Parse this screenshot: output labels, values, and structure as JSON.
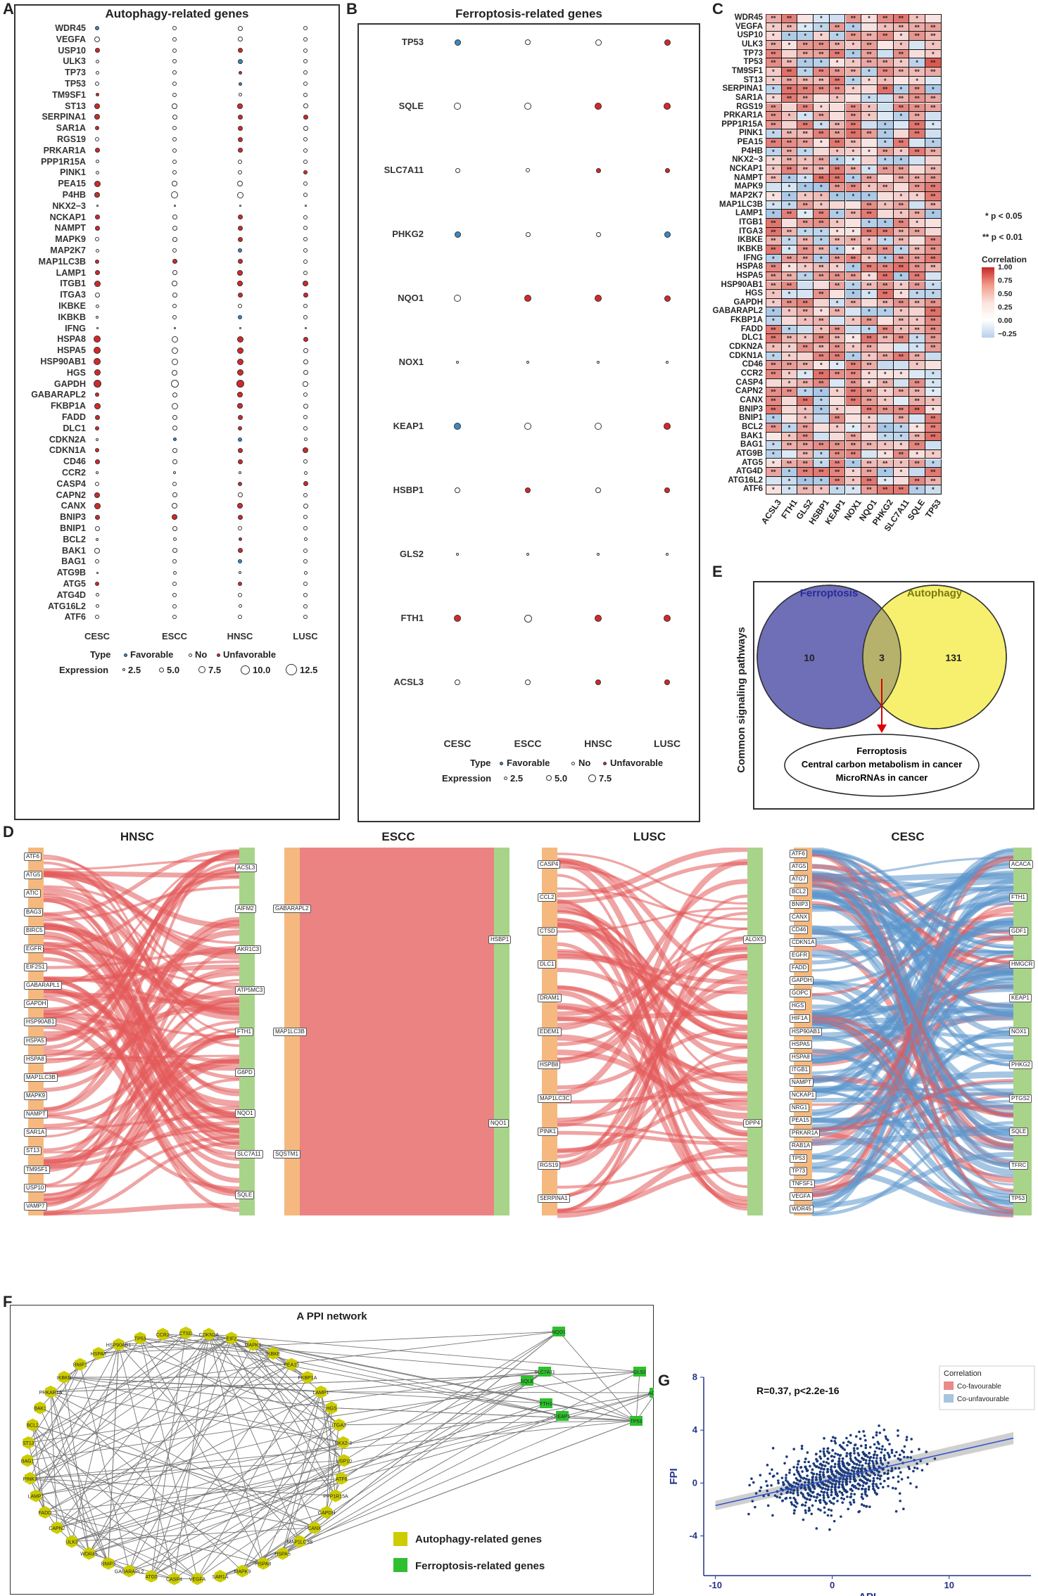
{
  "panels": {
    "A": "A",
    "B": "B",
    "C": "C",
    "D": "D",
    "E": "E",
    "F": "F",
    "G": "G"
  },
  "panelA": {
    "title": "Autophagy-related genes",
    "genes": [
      "WDR45",
      "VEGFA",
      "USP10",
      "ULK3",
      "TP73",
      "TP53",
      "TM9SF1",
      "ST13",
      "SERPINA1",
      "SAR1A",
      "RGS19",
      "PRKAR1A",
      "PPP1R15A",
      "PINK1",
      "PEA15",
      "P4HB",
      "NKX2−3",
      "NCKAP1",
      "NAMPT",
      "MAPK9",
      "MAP2K7",
      "MAP1LC3B",
      "LAMP1",
      "ITGB1",
      "ITGA3",
      "IKBKE",
      "IKBKB",
      "IFNG",
      "HSPA8",
      "HSPA5",
      "HSP90AB1",
      "HGS",
      "GAPDH",
      "GABARAPL2",
      "FKBP1A",
      "FADD",
      "DLC1",
      "CDKN2A",
      "CDKN1A",
      "CD46",
      "CCR2",
      "CASP4",
      "CAPN2",
      "CANX",
      "BNIP3",
      "BNIP1",
      "BCL2",
      "BAK1",
      "BAG1",
      "ATG9B",
      "ATG5",
      "ATG4D",
      "ATG16L2",
      "ATF6"
    ],
    "cancers": [
      "CESC",
      "ESCC",
      "HNSC",
      "LUSC"
    ],
    "types": [
      "FRUNNNUUUUNUNNUUNUUNNUUUNNNNUUUUUUUUUNUUNNUUUNNNNNUNNN",
      "NNNNNNNNNNNNNNNNNNNNNUNNNNNNNNNNNNNNNFNNNNNNUNNNNNNNNN",
      "NNUFUFNUUUUUNNNNNUUUFUUUUNFNUUUUUUUUUFUUNUNUUNUUFNUNNN",
      "NNNNNNNNUNNNNUNNNNNNNNNUUNNNUNNNNNNNNNUNNUNNNNNNNNNNNN"
    ],
    "sizes": [
      [
        4,
        6,
        5,
        3,
        3,
        4,
        3,
        6,
        6,
        4,
        4,
        5,
        3,
        3,
        7,
        6,
        1,
        5,
        5,
        4,
        3,
        4,
        5,
        7,
        5,
        3,
        2,
        1,
        8,
        8,
        8,
        7,
        9,
        4,
        7,
        5,
        4,
        2,
        4,
        5,
        2,
        4,
        6,
        7,
        5,
        5,
        2,
        6,
        4,
        1,
        4,
        3,
        3,
        4
      ],
      [
        4,
        4,
        4,
        4,
        4,
        4,
        4,
        6,
        5,
        4,
        4,
        4,
        4,
        4,
        6,
        8,
        1,
        5,
        5,
        5,
        4,
        5,
        5,
        6,
        5,
        4,
        4,
        1,
        7,
        7,
        7,
        6,
        9,
        5,
        7,
        5,
        5,
        3,
        5,
        5,
        2,
        4,
        5,
        6,
        6,
        5,
        3,
        5,
        4,
        3,
        4,
        4,
        4,
        4
      ],
      [
        5,
        5,
        5,
        5,
        3,
        3,
        3,
        6,
        5,
        5,
        5,
        5,
        4,
        4,
        6,
        7,
        1,
        5,
        5,
        5,
        4,
        5,
        6,
        6,
        5,
        4,
        4,
        1,
        7,
        7,
        7,
        7,
        9,
        6,
        6,
        5,
        4,
        4,
        5,
        5,
        2,
        4,
        5,
        6,
        5,
        4,
        3,
        5,
        4,
        2,
        4,
        4,
        3,
        4
      ],
      [
        4,
        4,
        4,
        4,
        4,
        4,
        4,
        5,
        5,
        5,
        4,
        4,
        4,
        4,
        4,
        4,
        1,
        4,
        4,
        4,
        4,
        4,
        4,
        6,
        5,
        4,
        4,
        1,
        5,
        5,
        5,
        5,
        6,
        4,
        5,
        4,
        4,
        3,
        6,
        4,
        3,
        5,
        4,
        5,
        4,
        4,
        3,
        4,
        4,
        3,
        4,
        4,
        4,
        4
      ]
    ],
    "legend": {
      "type_label": "Type",
      "type_items": [
        "Favorable",
        "No",
        "Unfavorable"
      ],
      "expr_label": "Expression",
      "expr_items": [
        "2.5",
        "5.0",
        "7.5",
        "10.0",
        "12.5"
      ]
    }
  },
  "panelB": {
    "title": "Ferroptosis-related genes",
    "genes": [
      "TP53",
      "SQLE",
      "SLC7A11",
      "PHKG2",
      "NQO1",
      "NOX1",
      "KEAP1",
      "HSBP1",
      "GLS2",
      "FTH1",
      "ACSL3"
    ],
    "cancers": [
      "CESC",
      "ESCC",
      "HNSC",
      "LUSC"
    ],
    "types": [
      "FNNFNNFNNUN",
      "NNNNUNNUNNN",
      "NUUNUNNNNUU",
      "UUUFUNUUNUU"
    ],
    "sizes": [
      [
        6,
        7,
        4,
        6,
        7,
        1,
        7,
        5,
        1,
        7,
        5
      ],
      [
        5,
        7,
        3,
        4,
        7,
        1,
        7,
        5,
        1,
        8,
        5
      ],
      [
        6,
        7,
        4,
        4,
        7,
        1,
        7,
        5,
        1,
        7,
        5
      ],
      [
        6,
        7,
        4,
        6,
        6,
        1,
        7,
        5,
        1,
        7,
        5
      ]
    ],
    "legend": {
      "type_label": "Type",
      "type_items": [
        "Favorable",
        "No",
        "Unfavorable"
      ],
      "expr_label": "Expression",
      "expr_items": [
        "2.5",
        "5.0",
        "7.5"
      ]
    }
  },
  "panelC": {
    "rows": [
      "WDR45",
      "VEGFA",
      "USP10",
      "ULK3",
      "TP73",
      "TP53",
      "TM9SF1",
      "ST13",
      "SERPINA1",
      "SAR1A",
      "RGS19",
      "PRKAR1A",
      "PPP1R15A",
      "PINK1",
      "PEA15",
      "P4HB",
      "NKX2−3",
      "NCKAP1",
      "NAMPT",
      "MAPK9",
      "MAP2K7",
      "MAP1LC3B",
      "LAMP1",
      "ITGB1",
      "ITGA3",
      "IKBKE",
      "IKBKB",
      "IFNG",
      "HSPA8",
      "HSPA5",
      "HSP90AB1",
      "HGS",
      "GAPDH",
      "GABARAPL2",
      "FKBP1A",
      "FADD",
      "DLC1",
      "CDKN2A",
      "CDKN1A",
      "CD46",
      "CCR2",
      "CASP4",
      "CAPN2",
      "CANX",
      "BNIP3",
      "BNIP1",
      "BCL2",
      "BAK1",
      "BAG1",
      "ATG9B",
      "ATG5",
      "ATG4D",
      "ATG16L2",
      "ATF6"
    ],
    "cols": [
      "ACSL3",
      "FTH1",
      "GLS2",
      "HSBP1",
      "KEAP1",
      "NOX1",
      "NQO1",
      "PHKG2",
      "SLC7A11",
      "SQLE",
      "TP53"
    ],
    "sig_legend": [
      "* p < 0.05",
      "** p < 0.01"
    ],
    "colorbar_title": "Correlation",
    "colorbar_ticks": [
      "1.00",
      "0.75",
      "0.50",
      "0.25",
      "0.00",
      "−0.25"
    ]
  },
  "panelD": {
    "titles": [
      "HNSC",
      "ESCC",
      "LUSC",
      "CESC"
    ],
    "hnsc_left": [
      "ATF6",
      "ATG5",
      "ATIC",
      "BAG3",
      "BIRC5",
      "EGFR",
      "EIF2S1",
      "GABARAPL1",
      "GAPDH",
      "HSP90AB1",
      "HSPA5",
      "HSPA8",
      "MAP1LC3B",
      "MAPK9",
      "NAMPT",
      "SAR1A",
      "ST13",
      "TM9SF1",
      "USP10",
      "VAMP7"
    ],
    "hnsc_right": [
      "ACSL3",
      "AIFM2",
      "AKR1C3",
      "ATP5MC3",
      "FTH1",
      "G6PD",
      "NQO1",
      "SLC7A11",
      "SQLE"
    ],
    "escc_left": [
      "GABARAPL2",
      "MAP1LC3B",
      "SQSTM1"
    ],
    "escc_right": [
      "HSBP1",
      "NQO1"
    ],
    "lusc_left": [
      "CASP4",
      "CCL2",
      "CTSD",
      "DLC1",
      "DRAM1",
      "EDEM1",
      "HSPB8",
      "MAP1LC3C",
      "PINK1",
      "RGS19",
      "SERPINA1"
    ],
    "lusc_right": [
      "ALOX5",
      "DPP4"
    ],
    "cesc_left": [
      "ATF6",
      "ATG5",
      "ATG7",
      "BCL2",
      "BNIP3",
      "CANX",
      "CD46",
      "CDKN1A",
      "EGFR",
      "FADD",
      "GAPDH",
      "GOPC",
      "HGS",
      "HIF1A",
      "HSP90AB1",
      "HSPA5",
      "HSPA8",
      "ITGB1",
      "NAMPT",
      "NCKAP1",
      "NRG1",
      "PEA15",
      "PRKAR1A",
      "RAB1A",
      "TP53",
      "TP73",
      "TNFSF1",
      "VEGFA",
      "WDR45"
    ],
    "cesc_right": [
      "ACACA",
      "FTH1",
      "GDF1",
      "HMGCR",
      "KEAP1",
      "NOX1",
      "PHKG2",
      "PTGS2",
      "SQLE",
      "TFRC",
      "TP53"
    ]
  },
  "panelE": {
    "ylabel": "Common signaling pathways",
    "left_label": "Ferroptosis",
    "right_label": "Autophagy",
    "left_count": "10",
    "overlap_count": "3",
    "right_count": "131",
    "common": [
      "Ferroptosis",
      "Central carbon metabolism in cancer",
      "MicroRNAs in cancer"
    ]
  },
  "panelF": {
    "title": "A PPI network",
    "circle_nodes": [
      "CTSD",
      "CDKN2A",
      "EIF2",
      "MAPK1",
      "IKBKE",
      "PEA15",
      "FKBP1A",
      "LAMP1",
      "HGS",
      "ITGA3",
      "NKX2-3",
      "USP10",
      "ATF6",
      "PPP1R15A",
      "GAPDH",
      "CANX",
      "MAP1LC3B",
      "HSPA5",
      "HSPA8",
      "MAPK9",
      "SAR1A",
      "VEGFA",
      "CASP4",
      "ATG5",
      "GABARAPL2",
      "BNIP3",
      "WDR45",
      "ULK3",
      "CAPN2",
      "FADD",
      "LAMP1",
      "PINK1",
      "BAG1",
      "ST13",
      "BCL2",
      "BAK1",
      "PRKAR1A",
      "IKBKB",
      "BNIP1",
      "HSPA8",
      "HSP90AB1",
      "TP53",
      "CCR2"
    ],
    "green_nodes": [
      "NQO1",
      "SLC7A11",
      "GLS2",
      "ACSL3",
      "SQLE",
      "FTH1",
      "KEAP1",
      "TP53"
    ],
    "legend": [
      "Autophagy-related genes",
      "Ferroptosis-related genes"
    ]
  },
  "panelG": {
    "annotation": "R=0.37, p<2.2e-16",
    "xlabel": "API",
    "ylabel": "FPI",
    "legend_title": "Correlation",
    "legend_items": [
      "Co-favourable",
      "Co-unfavourable"
    ],
    "colors": {
      "favourable": "#e88a8a",
      "unfavourable": "#a8c4e0",
      "points": "#1a3a7a",
      "line": "#3355cc"
    }
  },
  "chart_data": {
    "type": "scatter",
    "title": "R=0.37, p<2.2e-16",
    "xlabel": "API",
    "ylabel": "FPI",
    "xlim": [
      -11,
      17
    ],
    "ylim": [
      -7,
      8
    ],
    "xticks": [
      -10,
      0,
      10
    ],
    "yticks": [
      -4,
      0,
      4,
      8
    ],
    "regression": {
      "intercept": 0.3,
      "slope": 0.2
    },
    "n_points": 900
  },
  "colors": {
    "favorable": "#3b88c4",
    "unfavorable": "#d62728",
    "neutral": "#ffffff",
    "sankey_red": "#e45a5a",
    "sankey_blue": "#5b95cc",
    "left_bar": "#f5b97f",
    "right_bar": "#a8d48a",
    "venn_left": "#6f6fb8",
    "venn_right": "#f6f06e",
    "overlap": "#b6b26c",
    "auto_node": "#cccc00",
    "ferro_node": "#2fbf2f"
  }
}
